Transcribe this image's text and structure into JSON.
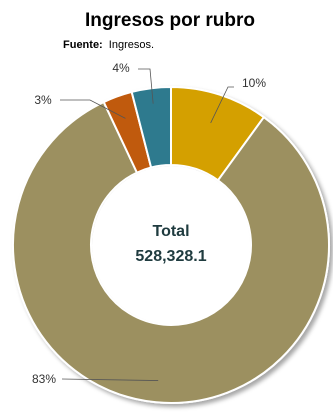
{
  "chart_data": {
    "type": "pie",
    "donut": true,
    "title": "Ingresos por rubro",
    "source_label": "Fuente:",
    "source_text": "Ingresos.",
    "center_label": "Total",
    "center_value": "528,328.1",
    "slices": [
      {
        "value": 10,
        "label": "10%",
        "color": "#d4a000"
      },
      {
        "value": 83,
        "label": "83%",
        "color": "#9c9060"
      },
      {
        "value": 3,
        "label": "3%",
        "color": "#c05a10"
      },
      {
        "value": 4,
        "label": "4%",
        "color": "#2e7a8e"
      }
    ],
    "legend": "none"
  }
}
